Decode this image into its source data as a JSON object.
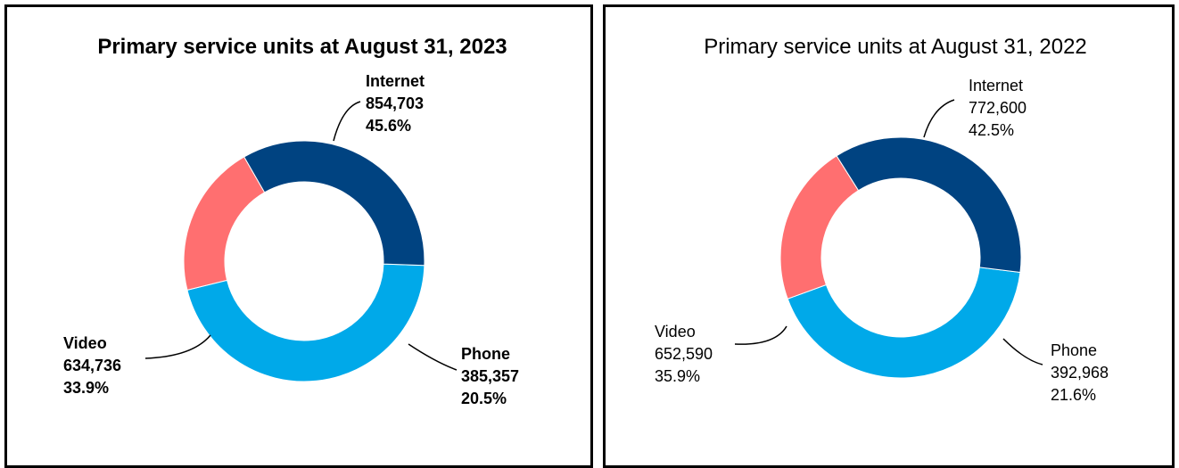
{
  "colors": {
    "internet": "#00a9e9",
    "video": "#004381",
    "phone": "#ff6f70"
  },
  "chart_data": [
    {
      "type": "pie",
      "title": "Primary service units at August 31, 2023",
      "categories": [
        "Internet",
        "Phone",
        "Video"
      ],
      "values": [
        854703,
        385357,
        634736
      ],
      "labels": [
        {
          "name": "Internet",
          "value": "854,703",
          "percent": "45.6%"
        },
        {
          "name": "Phone",
          "value": "385,357",
          "percent": "20.5%"
        },
        {
          "name": "Video",
          "value": "634,736",
          "percent": "33.9%"
        }
      ]
    },
    {
      "type": "pie",
      "title": "Primary service units at August 31, 2022",
      "categories": [
        "Internet",
        "Phone",
        "Video"
      ],
      "values": [
        772600,
        392968,
        652590
      ],
      "labels": [
        {
          "name": "Internet",
          "value": "772,600",
          "percent": "42.5%"
        },
        {
          "name": "Phone",
          "value": "392,968",
          "percent": "21.6%"
        },
        {
          "name": "Video",
          "value": "652,590",
          "percent": "35.9%"
        }
      ]
    }
  ]
}
